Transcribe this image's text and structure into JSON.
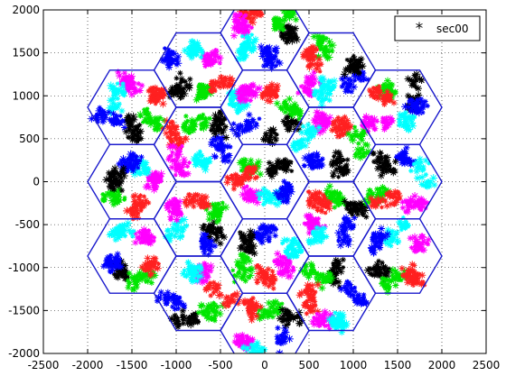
{
  "chart_data": {
    "type": "scatter",
    "title": "",
    "xlabel": "",
    "ylabel": "",
    "xlim": [
      -2500,
      2500
    ],
    "ylim": [
      -2000,
      2000
    ],
    "x_ticks": [
      -2500,
      -2000,
      -1500,
      -1000,
      -500,
      0,
      500,
      1000,
      1500,
      2000,
      2500
    ],
    "x_tick_labels": [
      "-2500",
      "-2000",
      "-1500",
      "-1000",
      "-500",
      "0",
      "500",
      "1000",
      "1500",
      "2000",
      "2500"
    ],
    "y_ticks": [
      -2000,
      -1500,
      -1000,
      -500,
      0,
      500,
      1000,
      1500,
      2000
    ],
    "y_tick_labels": [
      "-2000",
      "-1500",
      "-1000",
      "-500",
      "0",
      "500",
      "1000",
      "1500",
      "2000"
    ],
    "grid": true,
    "grid_style": "dotted",
    "legend": {
      "placement": "top-right",
      "entries": [
        {
          "label": "sec00",
          "marker": "asterisk",
          "color": "#000000"
        }
      ]
    },
    "hex_grid": {
      "cell_radius": 500,
      "rings": 2,
      "edge_color": "#1a1acc"
    },
    "sector_colors": [
      "#000000",
      "#00e600",
      "#ff2020",
      "#ff00ff",
      "#00ffff",
      "#0000ff"
    ],
    "sample_points": [
      {
        "sector": "black",
        "x": -880,
        "y": 1680
      },
      {
        "sector": "green",
        "x": -700,
        "y": 1880
      },
      {
        "sector": "magenta",
        "x": -480,
        "y": 1600
      },
      {
        "sector": "blue",
        "x": -220,
        "y": 1300
      },
      {
        "sector": "cyan",
        "x": -780,
        "y": 1350
      },
      {
        "sector": "black",
        "x": 780,
        "y": 1750
      },
      {
        "sector": "magenta",
        "x": 1400,
        "y": 1200
      },
      {
        "sector": "blue",
        "x": -1650,
        "y": 600
      },
      {
        "sector": "black",
        "x": -2050,
        "y": 170
      },
      {
        "sector": "magenta",
        "x": -1400,
        "y": 0
      },
      {
        "sector": "cyan",
        "x": -1480,
        "y": -400
      },
      {
        "sector": "magenta",
        "x": 2000,
        "y": 0
      },
      {
        "sector": "black",
        "x": 1000,
        "y": 560
      },
      {
        "sector": "green",
        "x": -450,
        "y": -1080
      },
      {
        "sector": "magenta",
        "x": 1050,
        "y": -1500
      },
      {
        "sector": "cyan",
        "x": 0,
        "y": -1800
      }
    ]
  }
}
